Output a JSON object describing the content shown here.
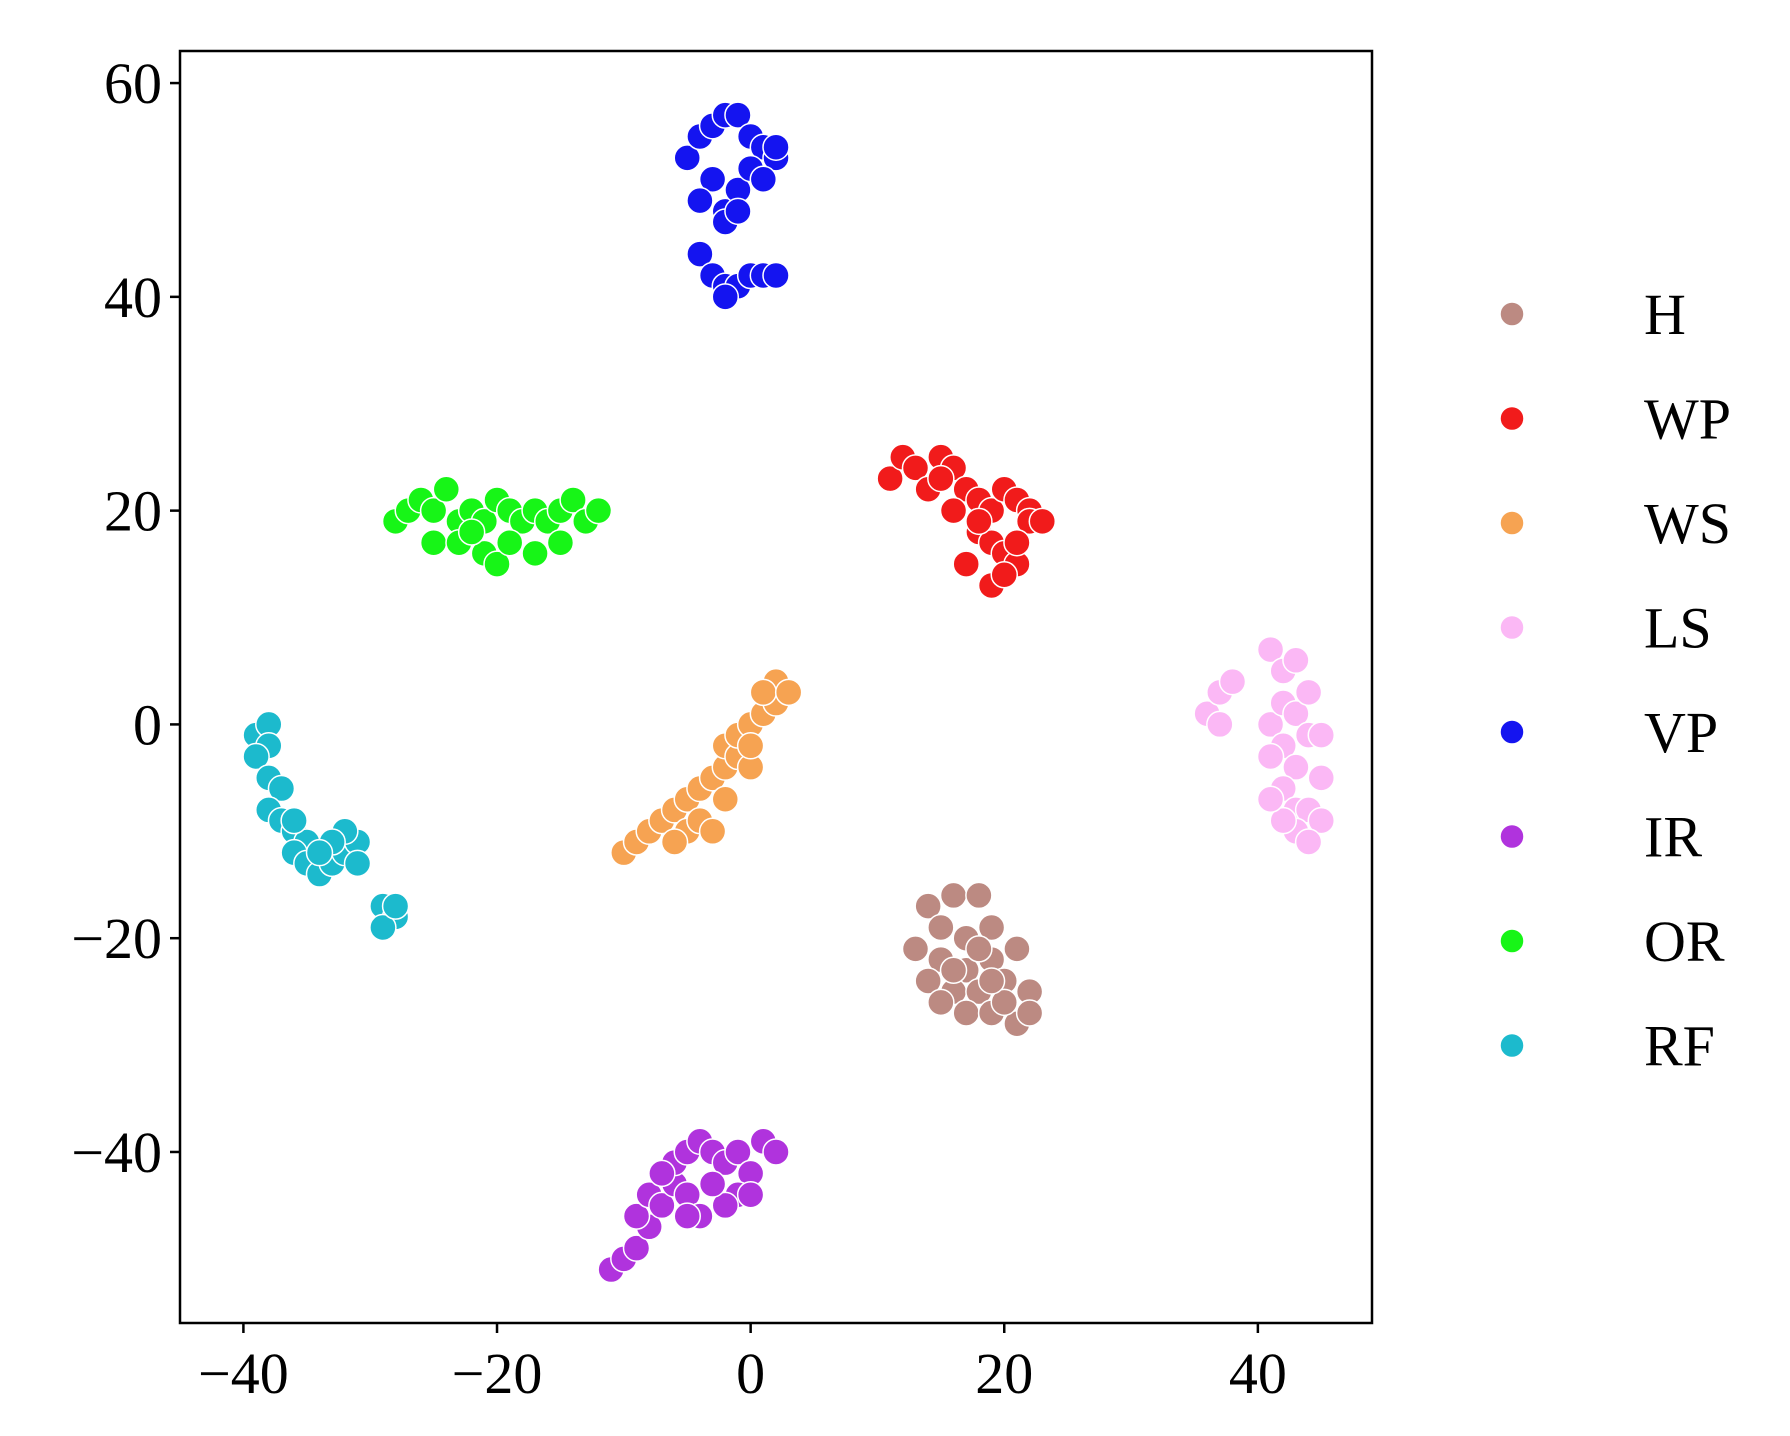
{
  "chart_data": {
    "type": "scatter",
    "title": "",
    "xlabel": "",
    "ylabel": "",
    "xlim": [
      -45,
      49
    ],
    "ylim": [
      -56,
      63
    ],
    "x_ticks": [
      -40,
      -20,
      0,
      20,
      40
    ],
    "y_ticks": [
      -40,
      -20,
      0,
      20,
      40,
      60
    ],
    "x_tick_labels": [
      "−40",
      "−20",
      "0",
      "20",
      "40"
    ],
    "y_tick_labels": [
      "−40",
      "−20",
      "0",
      "20",
      "40",
      "60"
    ],
    "grid": false,
    "legend_position": "right",
    "series": [
      {
        "name": "H",
        "color": "#bc8a82",
        "points": [
          [
            14,
            -17
          ],
          [
            16,
            -16
          ],
          [
            18,
            -16
          ],
          [
            15,
            -19
          ],
          [
            17,
            -20
          ],
          [
            19,
            -19
          ],
          [
            13,
            -21
          ],
          [
            15,
            -22
          ],
          [
            17,
            -23
          ],
          [
            19,
            -22
          ],
          [
            21,
            -21
          ],
          [
            14,
            -24
          ],
          [
            16,
            -25
          ],
          [
            18,
            -25
          ],
          [
            20,
            -24
          ],
          [
            22,
            -25
          ],
          [
            15,
            -26
          ],
          [
            17,
            -27
          ],
          [
            19,
            -27
          ],
          [
            21,
            -28
          ],
          [
            22,
            -27
          ],
          [
            18,
            -21
          ],
          [
            20,
            -26
          ],
          [
            16,
            -23
          ],
          [
            19,
            -24
          ]
        ]
      },
      {
        "name": "WP",
        "color": "#f11b1b",
        "points": [
          [
            11,
            23
          ],
          [
            12,
            25
          ],
          [
            13,
            24
          ],
          [
            14,
            22
          ],
          [
            15,
            25
          ],
          [
            16,
            24
          ],
          [
            17,
            22
          ],
          [
            18,
            21
          ],
          [
            19,
            20
          ],
          [
            20,
            22
          ],
          [
            21,
            21
          ],
          [
            22,
            20
          ],
          [
            18,
            18
          ],
          [
            19,
            17
          ],
          [
            20,
            16
          ],
          [
            21,
            15
          ],
          [
            19,
            13
          ],
          [
            17,
            15
          ],
          [
            22,
            19
          ],
          [
            16,
            20
          ],
          [
            23,
            19
          ],
          [
            21,
            17
          ],
          [
            20,
            14
          ],
          [
            18,
            19
          ],
          [
            15,
            23
          ]
        ]
      },
      {
        "name": "WS",
        "color": "#f6a352",
        "points": [
          [
            -10,
            -12
          ],
          [
            -9,
            -11
          ],
          [
            -8,
            -10
          ],
          [
            -7,
            -9
          ],
          [
            -6,
            -8
          ],
          [
            -5,
            -7
          ],
          [
            -5,
            -10
          ],
          [
            -4,
            -9
          ],
          [
            -3,
            -10
          ],
          [
            -4,
            -6
          ],
          [
            -3,
            -5
          ],
          [
            -2,
            -4
          ],
          [
            -2,
            -2
          ],
          [
            -1,
            -3
          ],
          [
            0,
            -4
          ],
          [
            -1,
            -1
          ],
          [
            0,
            0
          ],
          [
            1,
            1
          ],
          [
            2,
            2
          ],
          [
            2,
            4
          ],
          [
            1,
            3
          ],
          [
            3,
            3
          ],
          [
            -6,
            -11
          ],
          [
            -2,
            -7
          ],
          [
            0,
            -2
          ]
        ]
      },
      {
        "name": "LS",
        "color": "#fbb8f5",
        "points": [
          [
            36,
            1
          ],
          [
            37,
            0
          ],
          [
            37,
            3
          ],
          [
            38,
            4
          ],
          [
            41,
            7
          ],
          [
            42,
            5
          ],
          [
            43,
            6
          ],
          [
            41,
            0
          ],
          [
            42,
            2
          ],
          [
            43,
            1
          ],
          [
            44,
            -1
          ],
          [
            45,
            -1
          ],
          [
            42,
            -2
          ],
          [
            43,
            -4
          ],
          [
            42,
            -6
          ],
          [
            43,
            -8
          ],
          [
            44,
            -8
          ],
          [
            45,
            -9
          ],
          [
            43,
            -10
          ],
          [
            44,
            -11
          ],
          [
            42,
            -9
          ],
          [
            41,
            -3
          ],
          [
            45,
            -5
          ],
          [
            41,
            -7
          ],
          [
            44,
            3
          ]
        ]
      },
      {
        "name": "VP",
        "color": "#1414f0",
        "points": [
          [
            -5,
            53
          ],
          [
            -4,
            55
          ],
          [
            -3,
            56
          ],
          [
            -2,
            57
          ],
          [
            -1,
            57
          ],
          [
            0,
            55
          ],
          [
            1,
            54
          ],
          [
            2,
            53
          ],
          [
            -3,
            51
          ],
          [
            -4,
            49
          ],
          [
            -2,
            48
          ],
          [
            -1,
            50
          ],
          [
            0,
            52
          ],
          [
            1,
            51
          ],
          [
            2,
            54
          ],
          [
            -2,
            47
          ],
          [
            -4,
            44
          ],
          [
            -3,
            42
          ],
          [
            -2,
            41
          ],
          [
            -1,
            41
          ],
          [
            0,
            42
          ],
          [
            1,
            42
          ],
          [
            2,
            42
          ],
          [
            -2,
            40
          ],
          [
            -1,
            48
          ]
        ]
      },
      {
        "name": "IR",
        "color": "#b033dd",
        "points": [
          [
            -11,
            -51
          ],
          [
            -10,
            -50
          ],
          [
            -9,
            -49
          ],
          [
            -8,
            -47
          ],
          [
            -9,
            -46
          ],
          [
            -8,
            -44
          ],
          [
            -7,
            -45
          ],
          [
            -6,
            -43
          ],
          [
            -5,
            -44
          ],
          [
            -6,
            -41
          ],
          [
            -5,
            -40
          ],
          [
            -4,
            -39
          ],
          [
            -3,
            -40
          ],
          [
            -2,
            -41
          ],
          [
            -1,
            -40
          ],
          [
            0,
            -42
          ],
          [
            1,
            -39
          ],
          [
            2,
            -40
          ],
          [
            -1,
            -44
          ],
          [
            -2,
            -45
          ],
          [
            0,
            -44
          ],
          [
            -4,
            -46
          ],
          [
            -3,
            -43
          ],
          [
            -7,
            -42
          ],
          [
            -5,
            -46
          ]
        ]
      },
      {
        "name": "OR",
        "color": "#17f517",
        "points": [
          [
            -28,
            19
          ],
          [
            -27,
            20
          ],
          [
            -26,
            21
          ],
          [
            -25,
            20
          ],
          [
            -24,
            22
          ],
          [
            -23,
            19
          ],
          [
            -22,
            20
          ],
          [
            -21,
            19
          ],
          [
            -20,
            21
          ],
          [
            -19,
            20
          ],
          [
            -18,
            19
          ],
          [
            -17,
            20
          ],
          [
            -16,
            19
          ],
          [
            -15,
            20
          ],
          [
            -14,
            21
          ],
          [
            -13,
            19
          ],
          [
            -12,
            20
          ],
          [
            -25,
            17
          ],
          [
            -23,
            17
          ],
          [
            -21,
            16
          ],
          [
            -20,
            15
          ],
          [
            -19,
            17
          ],
          [
            -17,
            16
          ],
          [
            -15,
            17
          ],
          [
            -22,
            18
          ]
        ]
      },
      {
        "name": "RF",
        "color": "#1cbacd",
        "points": [
          [
            -39,
            -1
          ],
          [
            -38,
            0
          ],
          [
            -38,
            -2
          ],
          [
            -39,
            -3
          ],
          [
            -38,
            -5
          ],
          [
            -37,
            -6
          ],
          [
            -38,
            -8
          ],
          [
            -37,
            -9
          ],
          [
            -36,
            -10
          ],
          [
            -35,
            -11
          ],
          [
            -36,
            -12
          ],
          [
            -35,
            -13
          ],
          [
            -34,
            -14
          ],
          [
            -33,
            -13
          ],
          [
            -32,
            -12
          ],
          [
            -31,
            -11
          ],
          [
            -32,
            -10
          ],
          [
            -33,
            -11
          ],
          [
            -34,
            -12
          ],
          [
            -29,
            -17
          ],
          [
            -28,
            -18
          ],
          [
            -29,
            -19
          ],
          [
            -28,
            -17
          ],
          [
            -36,
            -9
          ],
          [
            -31,
            -13
          ]
        ]
      }
    ]
  }
}
